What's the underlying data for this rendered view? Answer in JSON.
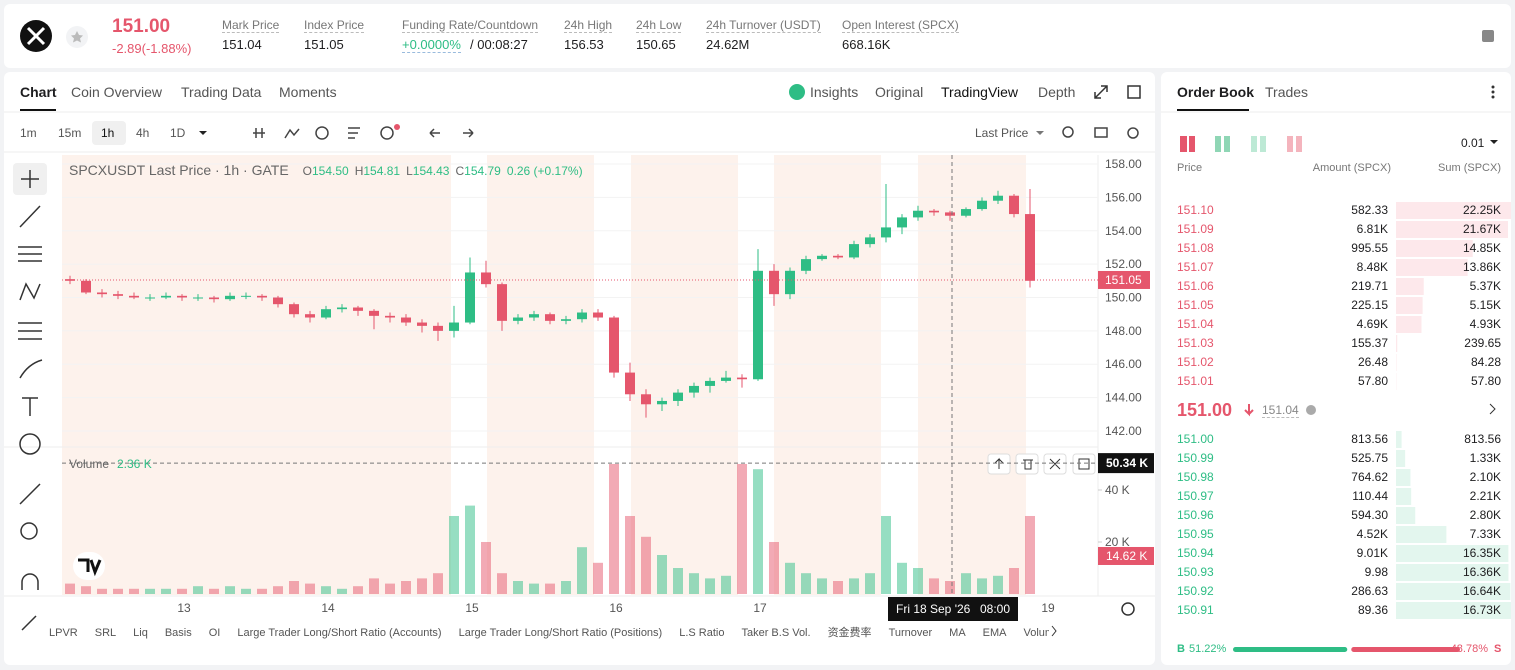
{
  "header": {
    "price": "151.00",
    "change": "-2.89(-1.88%)",
    "stats": [
      {
        "label": "Mark Price",
        "value": "151.04"
      },
      {
        "label": "Index Price",
        "value": "151.05"
      },
      {
        "label": "Funding Rate/Countdown",
        "value": "+0.0000%",
        "value2": "/ 00:08:27"
      },
      {
        "label": "24h High",
        "value": "156.53"
      },
      {
        "label": "24h Low",
        "value": "150.65"
      },
      {
        "label": "24h Turnover (USDT)",
        "value": "24.62M"
      },
      {
        "label": "Open Interest (SPCX)",
        "value": "668.16K"
      }
    ]
  },
  "tabs": [
    "Chart",
    "Coin Overview",
    "Trading Data",
    "Moments"
  ],
  "view_tabs": [
    "Insights",
    "Original",
    "TradingView",
    "Depth"
  ],
  "intervals": [
    "1m",
    "15m",
    "1h",
    "4h",
    "1D"
  ],
  "price_source": "Last Price",
  "legend": {
    "title": "SPCXUSDT Last Price · 1h · GATE",
    "ohlc": [
      {
        "key": "O",
        "value": "154.50"
      },
      {
        "key": "H",
        "value": "154.81"
      },
      {
        "key": "L",
        "value": "154.43"
      },
      {
        "key": "C",
        "value": "154.79"
      }
    ],
    "change": "0.26 (+0.17%)"
  },
  "chart_data": {
    "type": "candlestick",
    "candles": [
      [
        151.1,
        151.3,
        150.8,
        151.0
      ],
      [
        151.0,
        151.1,
        150.2,
        150.3
      ],
      [
        150.3,
        150.5,
        150.0,
        150.2
      ],
      [
        150.2,
        150.4,
        149.9,
        150.1
      ],
      [
        150.1,
        150.3,
        149.9,
        150.0
      ],
      [
        150.0,
        150.2,
        149.8,
        150.0
      ],
      [
        150.0,
        150.3,
        149.9,
        150.1
      ],
      [
        150.1,
        150.2,
        149.8,
        150.0
      ],
      [
        150.0,
        150.2,
        149.8,
        150.0
      ],
      [
        150.0,
        150.1,
        149.7,
        149.9
      ],
      [
        149.9,
        150.3,
        149.8,
        150.1
      ],
      [
        150.1,
        150.3,
        149.9,
        150.1
      ],
      [
        150.1,
        150.2,
        149.8,
        150.0
      ],
      [
        150.0,
        150.1,
        149.4,
        149.6
      ],
      [
        149.6,
        149.7,
        148.8,
        149.0
      ],
      [
        149.0,
        149.2,
        148.5,
        148.8
      ],
      [
        148.8,
        149.5,
        148.7,
        149.3
      ],
      [
        149.3,
        149.6,
        149.1,
        149.4
      ],
      [
        149.4,
        149.5,
        148.9,
        149.2
      ],
      [
        149.2,
        149.3,
        148.1,
        148.9
      ],
      [
        148.9,
        149.1,
        148.5,
        148.8
      ],
      [
        148.8,
        149.0,
        148.3,
        148.5
      ],
      [
        148.5,
        148.7,
        147.9,
        148.3
      ],
      [
        148.3,
        148.5,
        147.4,
        148.0
      ],
      [
        148.0,
        149.5,
        147.6,
        148.5
      ],
      [
        148.5,
        152.4,
        148.4,
        151.5
      ],
      [
        151.5,
        152.2,
        150.6,
        150.8
      ],
      [
        150.8,
        150.9,
        148.0,
        148.6
      ],
      [
        148.6,
        149.0,
        148.4,
        148.8
      ],
      [
        148.8,
        149.2,
        148.6,
        149.0
      ],
      [
        149.0,
        149.1,
        148.4,
        148.6
      ],
      [
        148.6,
        148.9,
        148.4,
        148.7
      ],
      [
        148.7,
        149.3,
        148.5,
        149.1
      ],
      [
        149.1,
        149.3,
        148.6,
        148.8
      ],
      [
        148.8,
        148.9,
        145.2,
        145.5
      ],
      [
        145.5,
        146.1,
        143.8,
        144.2
      ],
      [
        144.2,
        144.5,
        142.8,
        143.6
      ],
      [
        143.6,
        144.0,
        143.2,
        143.8
      ],
      [
        143.8,
        144.5,
        143.5,
        144.3
      ],
      [
        144.3,
        144.9,
        144.0,
        144.7
      ],
      [
        144.7,
        145.2,
        144.3,
        145.0
      ],
      [
        145.0,
        145.6,
        144.9,
        145.2
      ],
      [
        145.2,
        145.4,
        144.6,
        145.1
      ],
      [
        145.1,
        152.9,
        145.0,
        151.6
      ],
      [
        151.6,
        152.0,
        149.5,
        150.2
      ],
      [
        150.2,
        151.8,
        149.9,
        151.6
      ],
      [
        151.6,
        152.5,
        151.4,
        152.3
      ],
      [
        152.3,
        152.6,
        152.2,
        152.5
      ],
      [
        152.5,
        152.6,
        152.3,
        152.4
      ],
      [
        152.4,
        153.4,
        152.3,
        153.2
      ],
      [
        153.2,
        153.8,
        153.0,
        153.6
      ],
      [
        153.6,
        156.8,
        153.3,
        154.2
      ],
      [
        154.2,
        155.0,
        153.8,
        154.8
      ],
      [
        154.8,
        155.5,
        154.6,
        155.2
      ],
      [
        155.2,
        155.3,
        154.9,
        155.1
      ],
      [
        155.1,
        155.2,
        154.6,
        154.9
      ],
      [
        154.9,
        155.4,
        154.8,
        155.3
      ],
      [
        155.3,
        156.0,
        155.2,
        155.8
      ],
      [
        155.8,
        156.4,
        155.6,
        156.1
      ],
      [
        156.1,
        156.2,
        154.8,
        155.0
      ],
      [
        155.0,
        156.5,
        150.6,
        151.0
      ]
    ],
    "volume": [
      4,
      3,
      2,
      2,
      2,
      2,
      2,
      2,
      3,
      2,
      3,
      2,
      2,
      3,
      5,
      4,
      3,
      2,
      3,
      6,
      4,
      5,
      6,
      8,
      30,
      34,
      20,
      8,
      5,
      4,
      4,
      5,
      18,
      12,
      50,
      30,
      22,
      15,
      10,
      8,
      6,
      7,
      50,
      48,
      20,
      12,
      8,
      6,
      5,
      6,
      8,
      30,
      12,
      10,
      6,
      5,
      8,
      6,
      7,
      10,
      30
    ],
    "up_color": "#2ebd85",
    "down_color": "#e5566c",
    "ylim": [
      141.16,
      158.54
    ],
    "yticks": [
      {
        "value": 142,
        "label": "142.00"
      },
      {
        "value": 144,
        "label": "144.00"
      },
      {
        "value": 146,
        "label": "146.00"
      },
      {
        "value": 148,
        "label": "148.00"
      },
      {
        "value": 150,
        "label": "150.00"
      },
      {
        "value": 152,
        "label": "152.00"
      },
      {
        "value": 154,
        "label": "154.00"
      },
      {
        "value": 156,
        "label": "156.00"
      },
      {
        "value": 158,
        "label": "158.00"
      }
    ],
    "volume_ylim": [
      0,
      53.46
    ],
    "volume_ticks": [
      {
        "value": 20,
        "label": "20 K"
      },
      {
        "value": 40,
        "label": "40 K"
      }
    ],
    "categories": [
      "13",
      "14",
      "15",
      "16",
      "17",
      null,
      "19"
    ],
    "last_price": {
      "value": 151.05,
      "label": "151.05"
    },
    "volume_label": "Volume",
    "volume_value": "2.36 K",
    "crosshair_volume": {
      "value": 50.34,
      "label": "50.34 K"
    },
    "last_volume": {
      "value": 14.62,
      "label": "14.62 K"
    },
    "crosshair_date": "Fri 18 Sep '26",
    "crosshair_time": "08:00"
  },
  "indicators": [
    "LPVR",
    "SRL",
    "Liq",
    "Basis",
    "OI",
    "Large Trader Long/Short Ratio (Accounts)",
    "Large Trader Long/Short Ratio (Positions)",
    "L.S Ratio",
    "Taker B.S Vol.",
    "资金费率",
    "Turnover",
    "MA",
    "EMA",
    "Volume"
  ],
  "order_book": {
    "tabs": [
      "Order Book",
      "Trades"
    ],
    "tick_size": "0.01",
    "columns": [
      "Price",
      "Amount (SPCX)",
      "Sum (SPCX)"
    ],
    "asks": [
      {
        "price": "151.10",
        "amount": "582.33",
        "sum": {
          "value": 22250,
          "label": "22.25K"
        }
      },
      {
        "price": "151.09",
        "amount": "6.81K",
        "sum": {
          "value": 21670,
          "label": "21.67K"
        }
      },
      {
        "price": "151.08",
        "amount": "995.55",
        "sum": {
          "value": 14850,
          "label": "14.85K"
        }
      },
      {
        "price": "151.07",
        "amount": "8.48K",
        "sum": {
          "value": 13860,
          "label": "13.86K"
        }
      },
      {
        "price": "151.06",
        "amount": "219.71",
        "sum": {
          "value": 5370,
          "label": "5.37K"
        }
      },
      {
        "price": "151.05",
        "amount": "225.15",
        "sum": {
          "value": 5150,
          "label": "5.15K"
        }
      },
      {
        "price": "151.04",
        "amount": "4.69K",
        "sum": {
          "value": 4930,
          "label": "4.93K"
        }
      },
      {
        "price": "151.03",
        "amount": "155.37",
        "sum": 239.65
      },
      {
        "price": "151.02",
        "amount": "26.48",
        "sum": 84.28
      },
      {
        "price": "151.01",
        "amount": "57.80",
        "sum": {
          "value": 57.8,
          "label": "57.80"
        }
      }
    ],
    "mid": {
      "price": "151.00",
      "mark": "151.04"
    },
    "bids": [
      {
        "price": "151.00",
        "amount": "813.56",
        "sum": 813.56
      },
      {
        "price": "150.99",
        "amount": "525.75",
        "sum": {
          "value": 1330,
          "label": "1.33K"
        }
      },
      {
        "price": "150.98",
        "amount": "764.62",
        "sum": {
          "value": 2100,
          "label": "2.10K"
        }
      },
      {
        "price": "150.97",
        "amount": "110.44",
        "sum": {
          "value": 2210,
          "label": "2.21K"
        }
      },
      {
        "price": "150.96",
        "amount": "594.30",
        "sum": {
          "value": 2800,
          "label": "2.80K"
        }
      },
      {
        "price": "150.95",
        "amount": "4.52K",
        "sum": {
          "value": 7330,
          "label": "7.33K"
        }
      },
      {
        "price": "150.94",
        "amount": "9.01K",
        "sum": {
          "value": 16350,
          "label": "16.35K"
        }
      },
      {
        "price": "150.93",
        "amount": "9.98",
        "sum": {
          "value": 16360,
          "label": "16.36K"
        }
      },
      {
        "price": "150.92",
        "amount": "286.63",
        "sum": {
          "value": 16640,
          "label": "16.64K"
        }
      },
      {
        "price": "150.91",
        "amount": "89.36",
        "sum": {
          "value": 16730,
          "label": "16.73K"
        }
      }
    ],
    "buy_key": "B",
    "buy": {
      "value": 51.22,
      "label": "51.22%"
    },
    "sell": {
      "value": 48.78,
      "label": "48.78%"
    },
    "sell_key": "S"
  }
}
